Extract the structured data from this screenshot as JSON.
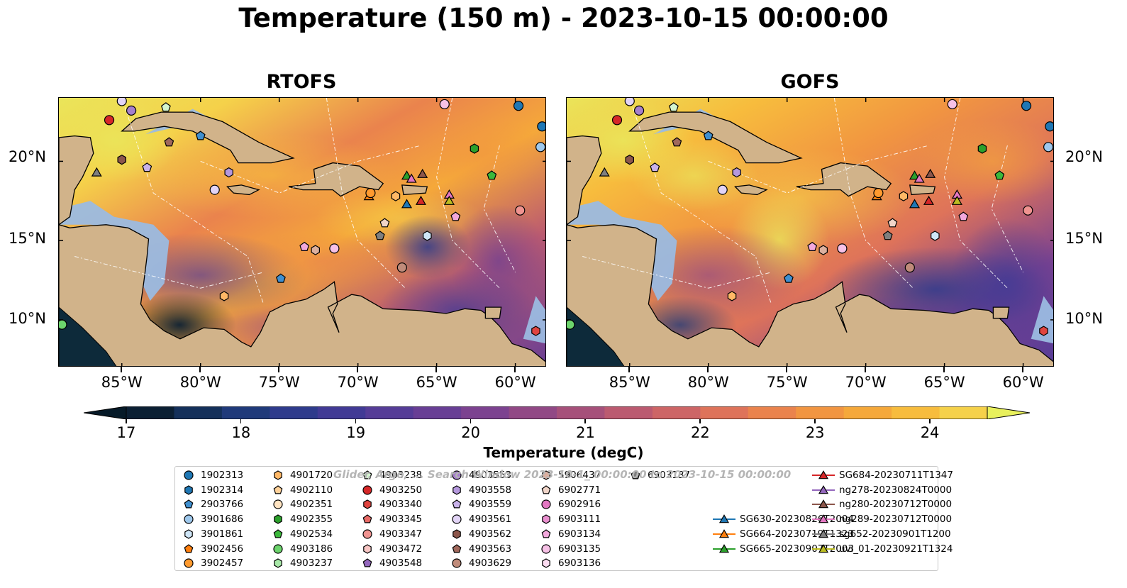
{
  "title": "Temperature (150 m) - 2023-10-15 00:00:00",
  "panels": [
    {
      "title": "RTOFS"
    },
    {
      "title": "GOFS"
    }
  ],
  "axes": {
    "x_ticks": [
      "85°W",
      "80°W",
      "75°W",
      "70°W",
      "65°W",
      "60°W"
    ],
    "y_ticks": [
      "20°N",
      "15°N",
      "10°N"
    ],
    "lon_range": [
      -89,
      -58
    ],
    "lat_range": [
      7,
      24
    ]
  },
  "colorbar": {
    "title": "Temperature (degC)",
    "ticks": [
      "17",
      "18",
      "19",
      "20",
      "21",
      "22",
      "23",
      "24"
    ],
    "min": 17,
    "max": 24.5,
    "step": 0.5,
    "colors": [
      "#0b1f33",
      "#14305a",
      "#1f3a7a",
      "#2e3b8c",
      "#413a95",
      "#553c97",
      "#683e95",
      "#7c4290",
      "#914885",
      "#a6507a",
      "#bb5a70",
      "#cd6566",
      "#de735a",
      "#ea834d",
      "#f19541",
      "#f5a83a",
      "#f7bc3d",
      "#f5d14a",
      "#eae55a"
    ],
    "extend_min_color": "#061a28",
    "extend_max_color": "#e8f05c"
  },
  "watermark": "Glider, Argo, ... Search Window 2023-10-1_ 00:00:00 to 2023-10-15 00:00:00",
  "legend": [
    {
      "label": "1902313",
      "marker": "circle",
      "color": "#1f77b4"
    },
    {
      "label": "1902314",
      "marker": "hexagon",
      "color": "#1f77b4"
    },
    {
      "label": "2903766",
      "marker": "pentagon",
      "color": "#3f8fcf"
    },
    {
      "label": "3901686",
      "marker": "circle",
      "color": "#9ec8ec"
    },
    {
      "label": "3901861",
      "marker": "hexagon",
      "color": "#cfe6f8"
    },
    {
      "label": "3902456",
      "marker": "pentagon",
      "color": "#ff7f0e"
    },
    {
      "label": "3902457",
      "marker": "circle",
      "color": "#ff9a2e"
    },
    {
      "label": "4901720",
      "marker": "hexagon",
      "color": "#ffb866"
    },
    {
      "label": "4902110",
      "marker": "pentagon",
      "color": "#ffd199"
    },
    {
      "label": "4902351",
      "marker": "circle",
      "color": "#ffe4c2"
    },
    {
      "label": "4902355",
      "marker": "hexagon",
      "color": "#2ca02c"
    },
    {
      "label": "4902534",
      "marker": "pentagon",
      "color": "#3bb83b"
    },
    {
      "label": "4903186",
      "marker": "circle",
      "color": "#6cd46c"
    },
    {
      "label": "4903237",
      "marker": "hexagon",
      "color": "#a8e8a8"
    },
    {
      "label": "4903238",
      "marker": "pentagon",
      "color": "#d4f5d0"
    },
    {
      "label": "4903250",
      "marker": "circle",
      "color": "#d62728"
    },
    {
      "label": "4903340",
      "marker": "hexagon",
      "color": "#e0443f"
    },
    {
      "label": "4903345",
      "marker": "pentagon",
      "color": "#e86a66"
    },
    {
      "label": "4903347",
      "marker": "circle",
      "color": "#f09390"
    },
    {
      "label": "4903472",
      "marker": "hexagon",
      "color": "#f8c6c4"
    },
    {
      "label": "4903548",
      "marker": "pentagon",
      "color": "#9467bd"
    },
    {
      "label": "4903553",
      "marker": "circle",
      "color": "#a57fcc"
    },
    {
      "label": "4903558",
      "marker": "hexagon",
      "color": "#b598dd"
    },
    {
      "label": "4903559",
      "marker": "pentagon",
      "color": "#c9b2ea"
    },
    {
      "label": "4903561",
      "marker": "circle",
      "color": "#e2d4f6"
    },
    {
      "label": "4903562",
      "marker": "hexagon",
      "color": "#8c564b"
    },
    {
      "label": "4903563",
      "marker": "pentagon",
      "color": "#a0685c"
    },
    {
      "label": "4903629",
      "marker": "circle",
      "color": "#c08b7a"
    },
    {
      "label": "5906437",
      "marker": "hexagon",
      "color": "#dcb0a0"
    },
    {
      "label": "6902771",
      "marker": "pentagon",
      "color": "#f0d4c8"
    },
    {
      "label": "6902916",
      "marker": "circle",
      "color": "#e377c2"
    },
    {
      "label": "6903111",
      "marker": "hexagon",
      "color": "#ea8fcf"
    },
    {
      "label": "6903134",
      "marker": "pentagon",
      "color": "#f2a8dc"
    },
    {
      "label": "6903135",
      "marker": "circle",
      "color": "#f7c1e6"
    },
    {
      "label": "6903136",
      "marker": "hexagon",
      "color": "#fcdcf1"
    },
    {
      "label": "6903137",
      "marker": "pentagon",
      "color": "#7f7f7f"
    },
    {
      "label": "SG630-20230826T2004",
      "marker": "triangle-line",
      "color": "#1f77b4"
    },
    {
      "label": "SG664-20230719T1323",
      "marker": "triangle-line",
      "color": "#ff7f0e"
    },
    {
      "label": "SG665-20230907T2003",
      "marker": "triangle-line",
      "color": "#2ca02c"
    },
    {
      "label": "SG684-20230711T1347",
      "marker": "triangle-line",
      "color": "#d62728"
    },
    {
      "label": "ng278-20230824T0000",
      "marker": "triangle-line",
      "color": "#9467bd"
    },
    {
      "label": "ng280-20230712T0000",
      "marker": "triangle-line",
      "color": "#8c564b"
    },
    {
      "label": "ng289-20230712T0000",
      "marker": "triangle-line",
      "color": "#e377c2"
    },
    {
      "label": "sg652-20230901T1200",
      "marker": "triangle-line",
      "color": "#7f7f7f"
    },
    {
      "label": "uvi_01-20230921T1324",
      "marker": "triangle-line",
      "color": "#bcbd22"
    }
  ],
  "markers": [
    {
      "lon": -85.8,
      "lat": 22.6,
      "marker": "circle",
      "color": "#d62728"
    },
    {
      "lon": -84.4,
      "lat": 23.2,
      "marker": "circle",
      "color": "#a57fcc"
    },
    {
      "lon": -85.0,
      "lat": 23.8,
      "marker": "circle",
      "color": "#e2d4f6"
    },
    {
      "lon": -82.2,
      "lat": 23.4,
      "marker": "pentagon",
      "color": "#d4f5d0"
    },
    {
      "lon": -82.0,
      "lat": 21.2,
      "marker": "pentagon",
      "color": "#a0685c"
    },
    {
      "lon": -80.0,
      "lat": 21.6,
      "marker": "pentagon",
      "color": "#3f8fcf"
    },
    {
      "lon": -85.0,
      "lat": 20.1,
      "marker": "hexagon",
      "color": "#8c564b"
    },
    {
      "lon": -83.4,
      "lat": 19.6,
      "marker": "pentagon",
      "color": "#c9b2ea"
    },
    {
      "lon": -86.6,
      "lat": 19.3,
      "marker": "triangle",
      "color": "#7f7f7f"
    },
    {
      "lon": -78.2,
      "lat": 19.3,
      "marker": "hexagon",
      "color": "#b598dd"
    },
    {
      "lon": -79.1,
      "lat": 18.2,
      "marker": "circle",
      "color": "#e2d4f6"
    },
    {
      "lon": -64.5,
      "lat": 23.6,
      "marker": "circle",
      "color": "#f7c1e6"
    },
    {
      "lon": -59.8,
      "lat": 23.5,
      "marker": "circle",
      "color": "#1f77b4"
    },
    {
      "lon": -58.3,
      "lat": 22.2,
      "marker": "circle",
      "color": "#1f77b4"
    },
    {
      "lon": -58.4,
      "lat": 20.9,
      "marker": "circle",
      "color": "#9ec8ec"
    },
    {
      "lon": -62.6,
      "lat": 20.8,
      "marker": "hexagon",
      "color": "#2ca02c"
    },
    {
      "lon": -61.5,
      "lat": 19.1,
      "marker": "pentagon",
      "color": "#3bb83b"
    },
    {
      "lon": -69.3,
      "lat": 17.8,
      "marker": "triangle",
      "color": "#ff7f0e"
    },
    {
      "lon": -69.2,
      "lat": 18.0,
      "marker": "circle",
      "color": "#ff9a2e"
    },
    {
      "lon": -67.6,
      "lat": 17.8,
      "marker": "hexagon",
      "color": "#ffb866"
    },
    {
      "lon": -66.9,
      "lat": 19.1,
      "marker": "triangle",
      "color": "#2ca02c"
    },
    {
      "lon": -66.6,
      "lat": 18.9,
      "marker": "triangle",
      "color": "#e377c2"
    },
    {
      "lon": -65.9,
      "lat": 19.2,
      "marker": "triangle",
      "color": "#8c564b"
    },
    {
      "lon": -66.9,
      "lat": 17.3,
      "marker": "triangle",
      "color": "#1f77b4"
    },
    {
      "lon": -66.0,
      "lat": 17.5,
      "marker": "triangle",
      "color": "#d62728"
    },
    {
      "lon": -64.2,
      "lat": 17.9,
      "marker": "triangle",
      "color": "#e377c2"
    },
    {
      "lon": -64.2,
      "lat": 17.5,
      "marker": "triangle",
      "color": "#bcbd22"
    },
    {
      "lon": -59.7,
      "lat": 16.9,
      "marker": "circle",
      "color": "#f09390"
    },
    {
      "lon": -63.8,
      "lat": 16.5,
      "marker": "pentagon",
      "color": "#f2a8dc"
    },
    {
      "lon": -68.3,
      "lat": 16.1,
      "marker": "pentagon",
      "color": "#f0d4c8"
    },
    {
      "lon": -68.6,
      "lat": 15.3,
      "marker": "pentagon",
      "color": "#7f7f7f"
    },
    {
      "lon": -65.6,
      "lat": 15.3,
      "marker": "hexagon",
      "color": "#cfe6f8"
    },
    {
      "lon": -73.4,
      "lat": 14.6,
      "marker": "pentagon",
      "color": "#f2a8dc"
    },
    {
      "lon": -72.7,
      "lat": 14.4,
      "marker": "hexagon",
      "color": "#dcb0a0"
    },
    {
      "lon": -71.5,
      "lat": 14.5,
      "marker": "circle",
      "color": "#f7c1e6"
    },
    {
      "lon": -67.2,
      "lat": 13.3,
      "marker": "circle",
      "color": "#c08b7a"
    },
    {
      "lon": -74.9,
      "lat": 12.6,
      "marker": "pentagon",
      "color": "#3f8fcf"
    },
    {
      "lon": -78.5,
      "lat": 11.5,
      "marker": "hexagon",
      "color": "#ffb866"
    },
    {
      "lon": -88.8,
      "lat": 9.7,
      "marker": "circle",
      "color": "#6cd46c"
    },
    {
      "lon": -58.7,
      "lat": 9.3,
      "marker": "hexagon",
      "color": "#e0443f"
    }
  ]
}
